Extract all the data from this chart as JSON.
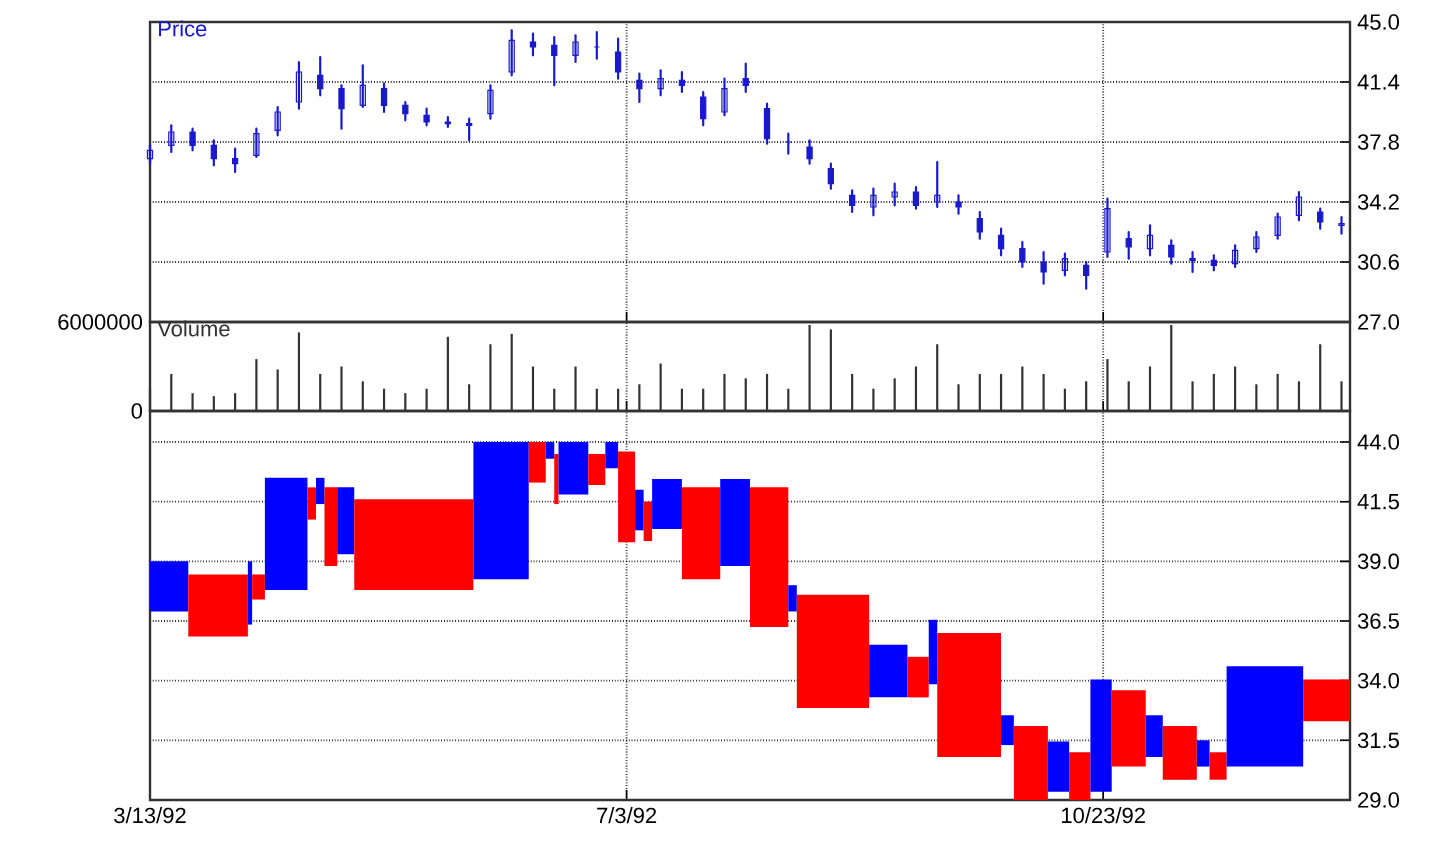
{
  "chart_data": [
    {
      "type": "candlestick",
      "title": "Price",
      "color": "#1a1acc",
      "x": [
        "1992-03-13",
        "1992-03-18",
        "1992-03-23",
        "1992-03-28",
        "1992-04-02",
        "1992-04-07",
        "1992-04-12",
        "1992-04-17",
        "1992-04-22",
        "1992-04-27",
        "1992-05-02",
        "1992-05-07",
        "1992-05-12",
        "1992-05-17",
        "1992-05-22",
        "1992-05-27",
        "1992-06-01",
        "1992-06-06",
        "1992-06-11",
        "1992-06-16",
        "1992-06-21",
        "1992-06-26",
        "1992-07-01",
        "1992-07-06",
        "1992-07-11",
        "1992-07-16",
        "1992-07-21",
        "1992-07-26",
        "1992-07-31",
        "1992-08-05",
        "1992-08-10",
        "1992-08-15",
        "1992-08-20",
        "1992-08-25",
        "1992-08-30",
        "1992-09-04",
        "1992-09-09",
        "1992-09-14",
        "1992-09-19",
        "1992-09-24",
        "1992-09-29",
        "1992-10-04",
        "1992-10-09",
        "1992-10-14",
        "1992-10-19",
        "1992-10-24",
        "1992-10-29",
        "1992-11-03",
        "1992-11-08",
        "1992-11-13",
        "1992-11-18",
        "1992-11-23",
        "1992-11-28",
        "1992-12-03",
        "1992-12-08",
        "1992-12-13",
        "1992-12-18"
      ],
      "ohlc": [
        [
          36.8,
          37.6,
          36.5,
          37.3
        ],
        [
          37.6,
          38.8,
          37.2,
          38.4
        ],
        [
          38.4,
          38.6,
          37.3,
          37.6
        ],
        [
          37.6,
          37.9,
          36.4,
          36.8
        ],
        [
          36.8,
          37.4,
          36.0,
          36.5
        ],
        [
          37.0,
          38.6,
          36.9,
          38.3
        ],
        [
          38.5,
          39.9,
          38.2,
          39.6
        ],
        [
          40.2,
          42.6,
          39.8,
          42.0
        ],
        [
          41.8,
          42.9,
          40.6,
          41.0
        ],
        [
          41.0,
          41.2,
          38.6,
          39.8
        ],
        [
          40.0,
          42.4,
          39.9,
          41.2
        ],
        [
          41.0,
          41.3,
          39.6,
          40.0
        ],
        [
          40.0,
          40.2,
          39.1,
          39.5
        ],
        [
          39.4,
          39.8,
          38.8,
          39.0
        ],
        [
          39.0,
          39.3,
          38.7,
          38.9
        ],
        [
          38.9,
          39.2,
          37.9,
          38.8
        ],
        [
          39.5,
          41.2,
          39.2,
          40.9
        ],
        [
          42.0,
          44.5,
          41.8,
          43.9
        ],
        [
          43.8,
          44.3,
          43.0,
          43.5
        ],
        [
          43.6,
          44.1,
          41.2,
          43.0
        ],
        [
          43.0,
          44.2,
          42.6,
          43.8
        ],
        [
          43.5,
          44.4,
          42.8,
          43.5
        ],
        [
          43.2,
          44.0,
          41.6,
          42.0
        ],
        [
          41.5,
          41.9,
          40.2,
          41.0
        ],
        [
          41.0,
          42.1,
          40.6,
          41.6
        ],
        [
          41.5,
          42.0,
          40.8,
          41.2
        ],
        [
          40.5,
          40.8,
          38.8,
          39.2
        ],
        [
          39.6,
          41.6,
          39.4,
          41.0
        ],
        [
          41.6,
          42.5,
          40.8,
          41.2
        ],
        [
          39.8,
          40.1,
          37.7,
          38.0
        ],
        [
          37.8,
          38.3,
          37.1,
          37.8
        ],
        [
          37.5,
          37.9,
          36.5,
          36.8
        ],
        [
          36.2,
          36.5,
          35.0,
          35.3
        ],
        [
          34.6,
          34.9,
          33.6,
          34.0
        ],
        [
          33.9,
          35.0,
          33.4,
          34.6
        ],
        [
          34.5,
          35.3,
          34.0,
          34.8
        ],
        [
          34.8,
          35.1,
          33.8,
          34.0
        ],
        [
          34.2,
          36.6,
          33.9,
          34.6
        ],
        [
          34.2,
          34.6,
          33.5,
          33.9
        ],
        [
          33.2,
          33.6,
          32.0,
          32.4
        ],
        [
          32.2,
          32.6,
          31.0,
          31.4
        ],
        [
          31.4,
          31.8,
          30.3,
          30.6
        ],
        [
          30.6,
          31.2,
          29.3,
          30.0
        ],
        [
          30.1,
          31.1,
          29.8,
          30.8
        ],
        [
          30.4,
          30.6,
          29.0,
          29.8
        ],
        [
          31.2,
          34.4,
          30.9,
          33.8
        ],
        [
          32.0,
          32.4,
          30.8,
          31.5
        ],
        [
          31.4,
          32.8,
          31.0,
          32.2
        ],
        [
          31.6,
          31.9,
          30.5,
          30.9
        ],
        [
          30.8,
          31.2,
          30.0,
          30.7
        ],
        [
          30.7,
          31.0,
          30.1,
          30.4
        ],
        [
          30.5,
          31.6,
          30.3,
          31.3
        ],
        [
          31.4,
          32.4,
          31.2,
          32.1
        ],
        [
          32.2,
          33.5,
          32.0,
          33.3
        ],
        [
          33.4,
          34.8,
          33.1,
          34.5
        ],
        [
          33.6,
          33.8,
          32.6,
          33.0
        ],
        [
          32.8,
          33.3,
          32.3,
          32.9
        ]
      ],
      "xlim": [
        "1992-03-13",
        "1992-12-20"
      ],
      "xticks": [
        {
          "value": "1992-03-13",
          "label": null
        },
        {
          "value": "1992-07-03",
          "label": null
        },
        {
          "value": "1992-10-23",
          "label": null
        }
      ],
      "ylim": [
        27,
        45
      ],
      "yticks": [
        {
          "value": 27,
          "label": "27.0"
        },
        {
          "value": 30.6,
          "label": "30.6"
        },
        {
          "value": 34.2,
          "label": "34.2"
        },
        {
          "value": 37.8,
          "label": "37.8"
        },
        {
          "value": 41.4,
          "label": "41.4"
        },
        {
          "value": 45,
          "label": "45.0"
        }
      ],
      "grid": true,
      "tick_labels": "y"
    },
    {
      "type": "bar",
      "title": "Volume",
      "color": "#333333",
      "x": [
        "1992-03-13",
        "1992-03-18",
        "1992-03-23",
        "1992-03-28",
        "1992-04-02",
        "1992-04-07",
        "1992-04-12",
        "1992-04-17",
        "1992-04-22",
        "1992-04-27",
        "1992-05-02",
        "1992-05-07",
        "1992-05-12",
        "1992-05-17",
        "1992-05-22",
        "1992-05-27",
        "1992-06-01",
        "1992-06-06",
        "1992-06-11",
        "1992-06-16",
        "1992-06-21",
        "1992-06-26",
        "1992-07-01",
        "1992-07-06",
        "1992-07-11",
        "1992-07-16",
        "1992-07-21",
        "1992-07-26",
        "1992-07-31",
        "1992-08-05",
        "1992-08-10",
        "1992-08-15",
        "1992-08-20",
        "1992-08-25",
        "1992-08-30",
        "1992-09-04",
        "1992-09-09",
        "1992-09-14",
        "1992-09-19",
        "1992-09-24",
        "1992-09-29",
        "1992-10-04",
        "1992-10-09",
        "1992-10-14",
        "1992-10-19",
        "1992-10-24",
        "1992-10-29",
        "1992-11-03",
        "1992-11-08",
        "1992-11-13",
        "1992-11-18",
        "1992-11-23",
        "1992-11-28",
        "1992-12-03",
        "1992-12-08",
        "1992-12-13",
        "1992-12-18"
      ],
      "values": [
        1500000,
        2500000,
        1200000,
        1000000,
        1200000,
        3500000,
        2800000,
        5300000,
        2500000,
        3000000,
        2000000,
        1500000,
        1200000,
        1500000,
        5000000,
        1800000,
        4500000,
        5200000,
        3000000,
        1500000,
        3000000,
        1500000,
        1500000,
        1800000,
        3200000,
        1500000,
        1500000,
        2500000,
        2200000,
        2500000,
        1500000,
        5800000,
        5500000,
        2500000,
        1500000,
        2200000,
        3000000,
        4500000,
        1800000,
        2500000,
        2500000,
        3000000,
        2500000,
        1500000,
        2000000,
        3500000,
        2000000,
        3000000,
        5800000,
        2000000,
        2500000,
        3000000,
        1800000,
        2500000,
        2000000,
        4500000,
        2000000
      ],
      "xlim": [
        "1992-03-13",
        "1992-12-20"
      ],
      "xticks": [
        {
          "value": "1992-03-13",
          "label": null
        },
        {
          "value": "1992-07-03",
          "label": null
        },
        {
          "value": "1992-10-23",
          "label": null
        }
      ],
      "ylim": [
        0,
        6000000
      ],
      "yticks": [
        0,
        6000000
      ],
      "grid": true,
      "tick_labels": "y"
    },
    {
      "type": "bar",
      "x": [
        "1992-03-17T12:00",
        "1992-03-29",
        "1992-04-05T12:00",
        "1992-04-07T12:00",
        "1992-04-14",
        "1992-04-20",
        "1992-04-22",
        "1992-04-24T12:00",
        "1992-04-28",
        "1992-05-14",
        "1992-06-03T12:00",
        "1992-06-12",
        "1992-06-15",
        "1992-06-16T12:00",
        "1992-06-20T12:00",
        "1992-06-26",
        "1992-06-29T12:00",
        "1992-07-03",
        "1992-07-06",
        "1992-07-08",
        "1992-07-12T12:00",
        "1992-07-20T12:00",
        "1992-07-28T12:00",
        "1992-08-05T12:00",
        "1992-08-11",
        "1992-08-20T12:00",
        "1992-09-02T12:00",
        "1992-09-09T12:00",
        "1992-09-13",
        "1992-09-21T12:00",
        "1992-09-30T12:00",
        "1992-10-06",
        "1992-10-12T12:00",
        "1992-10-17T12:00",
        "1992-10-22T12:00",
        "1992-10-29",
        "1992-11-04",
        "1992-11-10",
        "1992-11-15T12:00",
        "1992-11-19",
        "1992-11-30",
        "1992-12-14T12:00"
      ],
      "base": [
        36.9,
        35.85,
        36.35,
        37.4,
        37.8,
        40.75,
        41.4,
        38.8,
        39.3,
        37.8,
        38.25,
        42.3,
        43.3,
        41.4,
        41.8,
        42.2,
        42.9,
        39.8,
        40.3,
        39.85,
        40.35,
        38.25,
        38.8,
        36.25,
        36.9,
        32.85,
        33.3,
        33.3,
        33.85,
        30.8,
        31.3,
        29.0,
        29.35,
        29.0,
        29.35,
        30.4,
        30.8,
        29.85,
        30.4,
        29.85,
        30.4,
        32.3
      ],
      "values": [
        2.1,
        2.6,
        2.65,
        1.05,
        4.7,
        1.35,
        1.1,
        3.3,
        2.8,
        3.8,
        5.75,
        1.7,
        0.7,
        2.1,
        2.2,
        1.3,
        1.1,
        3.8,
        1.7,
        1.65,
        2.1,
        3.85,
        3.65,
        5.85,
        1.1,
        4.75,
        2.2,
        1.7,
        2.7,
        5.2,
        1.25,
        3.1,
        2.1,
        2.0,
        4.7,
        3.2,
        1.75,
        2.25,
        1.1,
        1.15,
        4.2,
        1.75
      ],
      "colors": [
        "#0000ff",
        "#ff0000",
        "#0000ff",
        "#ff0000",
        "#0000ff",
        "#ff0000",
        "#0000ff",
        "#ff0000",
        "#0000ff",
        "#ff0000",
        "#0000ff",
        "#ff0000",
        "#0000ff",
        "#ff0000",
        "#0000ff",
        "#ff0000",
        "#0000ff",
        "#ff0000",
        "#0000ff",
        "#ff0000",
        "#0000ff",
        "#ff0000",
        "#0000ff",
        "#ff0000",
        "#0000ff",
        "#ff0000",
        "#0000ff",
        "#ff0000",
        "#0000ff",
        "#ff0000",
        "#0000ff",
        "#ff0000",
        "#0000ff",
        "#ff0000",
        "#0000ff",
        "#ff0000",
        "#0000ff",
        "#ff0000",
        "#0000ff",
        "#ff0000",
        "#0000ff",
        "#ff0000"
      ],
      "xlim": [
        "1992-03-13",
        "1992-12-20"
      ],
      "xticks": [
        {
          "value": "1992-03-13",
          "label": "3/13/92"
        },
        {
          "value": "1992-07-03",
          "label": "7/3/92"
        },
        {
          "value": "1992-10-23",
          "label": "10/23/92"
        }
      ],
      "ylim": [
        29,
        45.3
      ],
      "yticks": [
        {
          "value": 29,
          "label": "29.0"
        },
        {
          "value": 31.5,
          "label": "31.5"
        },
        {
          "value": 34,
          "label": "34.0"
        },
        {
          "value": 36.5,
          "label": "36.5"
        },
        {
          "value": 39,
          "label": "39.0"
        },
        {
          "value": 41.5,
          "label": "41.5"
        },
        {
          "value": 44,
          "label": "44.0"
        }
      ],
      "grid": true
    }
  ]
}
